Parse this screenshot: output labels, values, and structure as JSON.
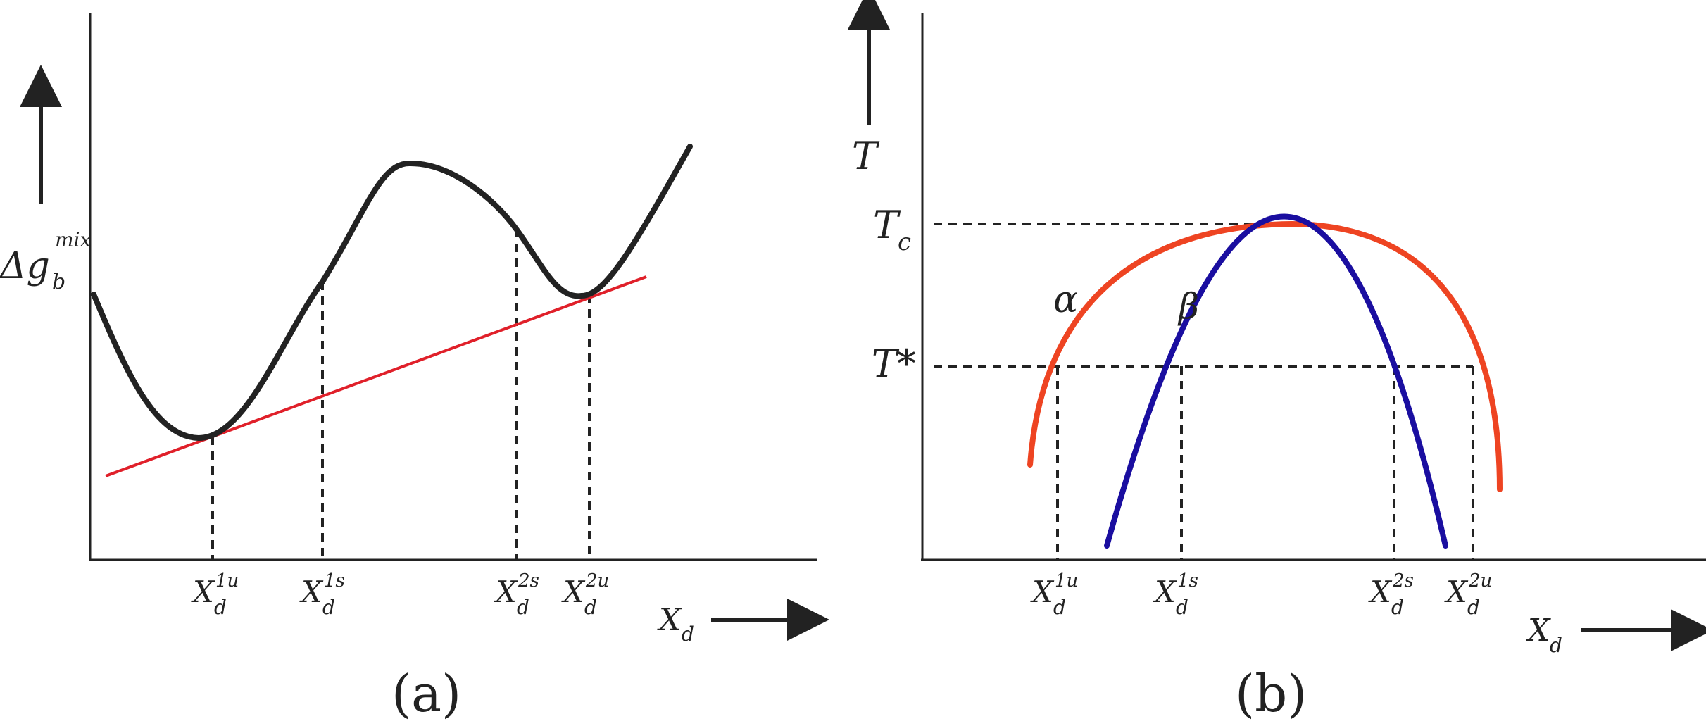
{
  "panel_a": {
    "y_symbol": "Δg",
    "y_sub": "b",
    "y_sup": "mix",
    "x_label": "X",
    "x_sub": "d",
    "ticks": [
      {
        "base": "X",
        "sub": "d",
        "sup": "1u"
      },
      {
        "base": "X",
        "sub": "d",
        "sup": "1s"
      },
      {
        "base": "X",
        "sub": "d",
        "sup": "2s"
      },
      {
        "base": "X",
        "sub": "d",
        "sup": "2u"
      }
    ],
    "caption": "(a)"
  },
  "panel_b": {
    "y_label": "T",
    "tc_base": "T",
    "tc_sub": "c",
    "tstar": "T*",
    "alpha": "α",
    "beta": "β",
    "x_label": "X",
    "x_sub": "d",
    "ticks": [
      {
        "base": "X",
        "sub": "d",
        "sup": "1u"
      },
      {
        "base": "X",
        "sub": "d",
        "sup": "1s"
      },
      {
        "base": "X",
        "sub": "d",
        "sup": "2s"
      },
      {
        "base": "X",
        "sub": "d",
        "sup": "2u"
      }
    ],
    "caption": "(b)"
  },
  "colors": {
    "curve": "#222222",
    "tangent": "#e0202a",
    "binodal": "#ee4422",
    "spinodal": "#1a0ea0"
  }
}
